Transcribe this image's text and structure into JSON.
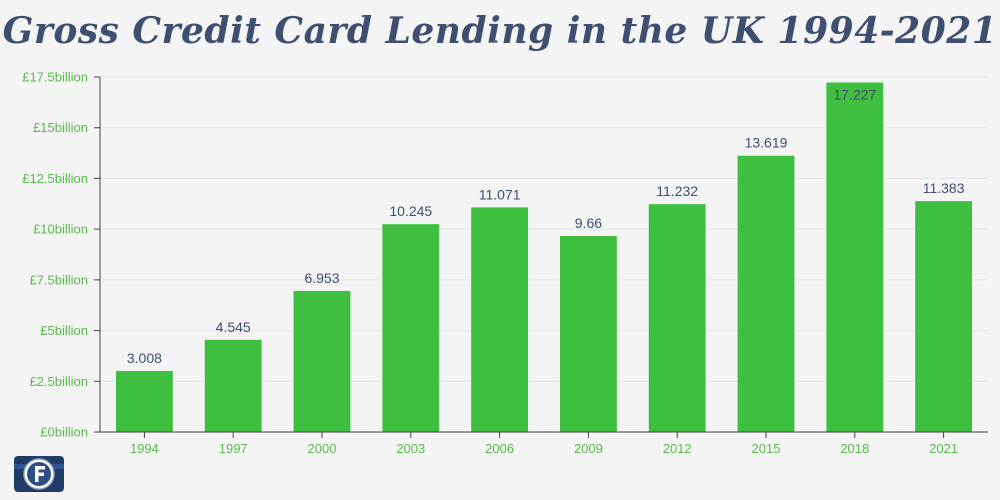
{
  "title": "Gross Credit Card Lending in the UK 1994-2021",
  "colors": {
    "bar": "#3fbf3f",
    "title": "#3e4f70",
    "tick_text": "#5ab94c",
    "data_label": "#3e4f70",
    "grid": "#e2e2e2",
    "background": "#f4f4f4"
  },
  "chart_data": {
    "type": "bar",
    "title": "Gross Credit Card Lending in the UK 1994-2021",
    "xlabel": "",
    "ylabel": "",
    "categories": [
      "1994",
      "1997",
      "2000",
      "2003",
      "2006",
      "2009",
      "2012",
      "2015",
      "2018",
      "2021"
    ],
    "values": [
      3.008,
      4.545,
      6.953,
      10.245,
      11.071,
      9.66,
      11.232,
      13.619,
      17.227,
      11.383
    ],
    "data_labels": [
      "3.008",
      "4.545",
      "6.953",
      "10.245",
      "11.071",
      "9.66",
      "11.232",
      "13.619",
      "17.227",
      "11.383"
    ],
    "ylim": [
      0,
      17.5
    ],
    "yticks": [
      0,
      2.5,
      5,
      7.5,
      10,
      12.5,
      15,
      17.5
    ],
    "ytick_labels": [
      "£0billion",
      "£2.5billion",
      "£5billion",
      "£7.5billion",
      "£10billion",
      "£12.5billion",
      "£15billion",
      "£17.5billion"
    ],
    "grid": true,
    "legend": "none"
  },
  "logo": {
    "icon": "finder-f-logo-icon"
  }
}
